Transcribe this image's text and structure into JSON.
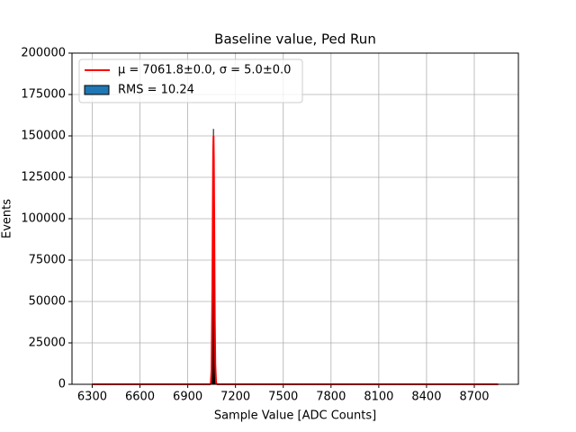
{
  "chart_data": {
    "type": "histogram",
    "title": "Baseline value, Ped Run",
    "xlabel": "Sample Value [ADC Counts]",
    "ylabel": "Events",
    "xlim": [
      6173,
      8977
    ],
    "xticks": [
      6300,
      6600,
      6900,
      7200,
      7500,
      7800,
      8100,
      8400,
      8700
    ],
    "ylim": [
      0,
      200000
    ],
    "yticks": [
      0,
      25000,
      50000,
      75000,
      100000,
      125000,
      150000,
      175000,
      200000
    ],
    "grid": true,
    "legend": "upper left",
    "series": [
      {
        "name": "RMS = 10.24",
        "type": "histogram",
        "color": "#1f77b4",
        "edgecolor": "#000000",
        "bins": [
          7048,
          7049,
          7050,
          7051,
          7052,
          7053,
          7054,
          7055,
          7056,
          7057,
          7058,
          7059,
          7060,
          7061,
          7062,
          7063,
          7064,
          7065,
          7066,
          7067,
          7068,
          7069,
          7070,
          7071,
          7072,
          7073,
          7074,
          7075,
          7076,
          7077
        ],
        "values": [
          4360,
          7280,
          11670,
          17970,
          26600,
          37810,
          51660,
          67820,
          85520,
          103600,
          120620,
          134920,
          145020,
          154000,
          148540,
          141570,
          129650,
          114070,
          96430,
          78300,
          61110,
          45820,
          33010,
          22850,
          15190,
          9700,
          5960,
          3510,
          1990
        ]
      },
      {
        "name": "μ = 7061.8±0.0, σ = 5.0±0.0",
        "type": "line",
        "color": "#ff0000",
        "x": [
          6300,
          7000,
          7030,
          7040,
          7045,
          7050,
          7055,
          7058,
          7060,
          7062,
          7064,
          7066,
          7068,
          7070,
          7073,
          7078,
          7085,
          7100,
          8850
        ],
        "values": [
          0,
          0,
          0,
          11,
          530,
          9250,
          59490,
          112340,
          140600,
          149880,
          136150,
          105400,
          69540,
          39090,
          12210,
          790,
          3,
          0,
          0
        ]
      }
    ]
  }
}
